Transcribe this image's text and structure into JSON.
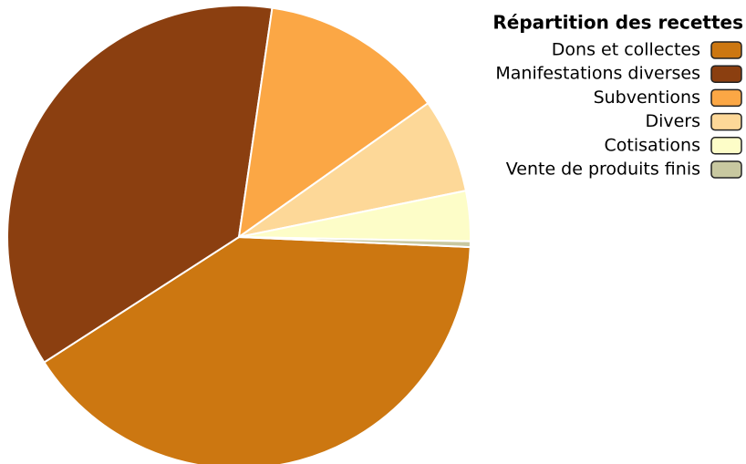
{
  "chart_data": {
    "type": "pie",
    "legend_title": "Répartition des recettes",
    "categories": [
      "Dons et collectes",
      "Manifestations diverses",
      "Subventions",
      "Divers",
      "Cotisations",
      "Vente de produits finis"
    ],
    "values": [
      40.2,
      36.4,
      12.9,
      6.6,
      3.5,
      0.4
    ],
    "colors": [
      "#cc7711",
      "#8b3f10",
      "#fba745",
      "#fdd898",
      "#fdfdc8",
      "#c8c8a0"
    ],
    "legend": "top-right"
  }
}
